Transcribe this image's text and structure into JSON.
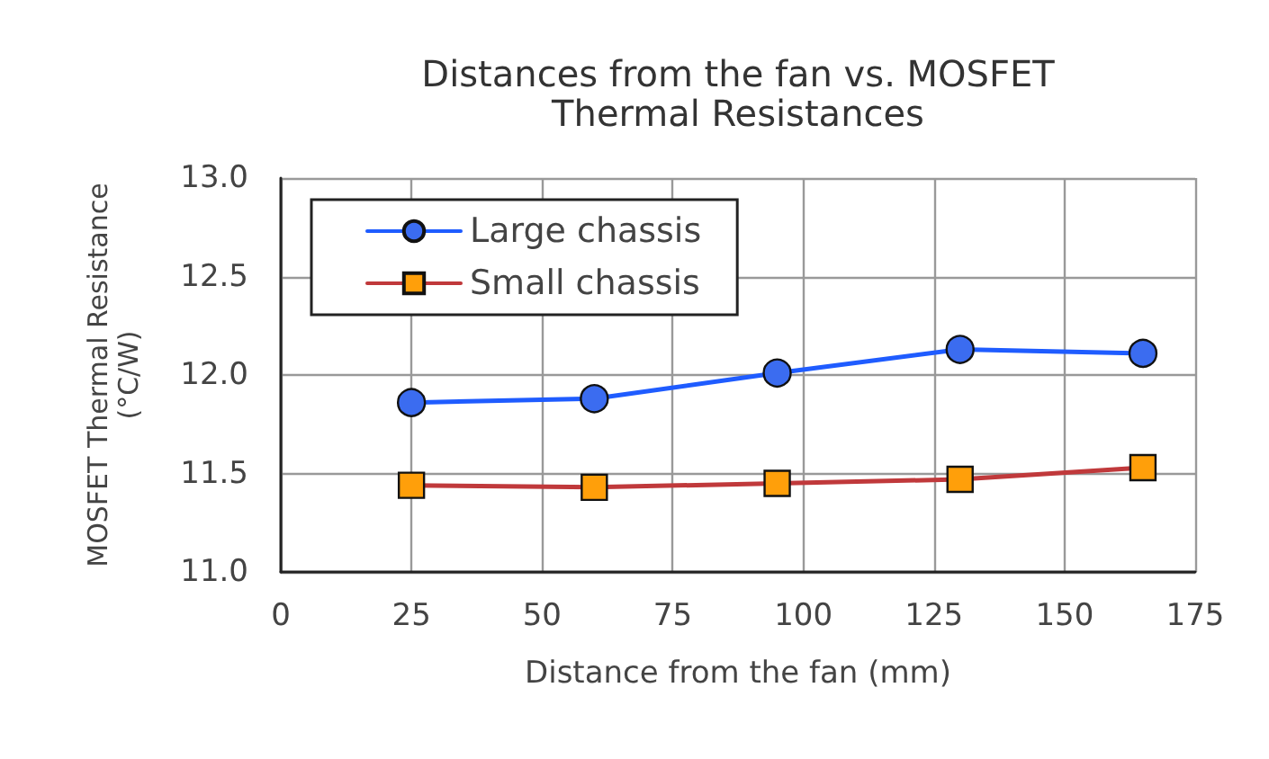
{
  "chart_data": {
    "type": "line",
    "title": "Distances from the fan vs. MOSFET\nThermal Resistances",
    "xlabel": "Distance from the fan (mm)",
    "ylabel": "MOSFET Thermal Resistance\n(°C/W)",
    "x": [
      25,
      60,
      95,
      130,
      165
    ],
    "series": [
      {
        "name": "Large chassis",
        "color": "#1f5cff",
        "marker": "circle",
        "values": [
          11.86,
          11.88,
          12.01,
          12.13,
          12.11
        ]
      },
      {
        "name": "Small chassis",
        "color": "#c0393b",
        "marker": "square",
        "values": [
          11.44,
          11.43,
          11.45,
          11.47,
          11.53
        ]
      }
    ],
    "xlim": [
      0,
      175
    ],
    "xticks": [
      0,
      25,
      50,
      75,
      100,
      125,
      150,
      175
    ],
    "ylim": [
      11.0,
      13.0
    ],
    "yticks": [
      {
        "value": 11,
        "label": "11.0"
      },
      {
        "value": 11.5,
        "label": "11.5"
      },
      {
        "value": 12,
        "label": "12.0"
      },
      {
        "value": 12.5,
        "label": "12.5"
      },
      {
        "value": 13,
        "label": "13.0"
      }
    ],
    "grid": true,
    "legend": "top left",
    "line_style": "solid"
  }
}
